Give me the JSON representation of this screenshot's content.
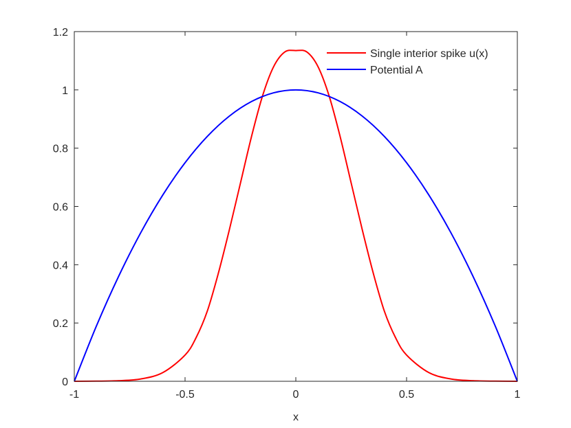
{
  "chart_data": {
    "type": "line",
    "title": "",
    "xlabel": "x",
    "ylabel": "",
    "xlim": [
      -1,
      1
    ],
    "ylim": [
      0,
      1.2
    ],
    "xticks": [
      -1,
      -0.5,
      0,
      0.5,
      1
    ],
    "xtick_labels": [
      "-1",
      "-0.5",
      "0",
      "0.5",
      "1"
    ],
    "yticks": [
      0,
      0.2,
      0.4,
      0.6,
      0.8,
      1,
      1.2
    ],
    "ytick_labels": [
      "0",
      "0.2",
      "0.4",
      "0.6",
      "0.8",
      "1",
      "1.2"
    ],
    "grid": false,
    "legend_position": "top-right",
    "series": [
      {
        "name": "Single interior spike u(x)",
        "color": "#ff0000",
        "x": [
          -1,
          -0.9,
          -0.8,
          -0.7,
          -0.6,
          -0.5,
          -0.45,
          -0.4,
          -0.35,
          -0.3,
          -0.25,
          -0.2,
          -0.15,
          -0.1,
          -0.05,
          0,
          0.05,
          0.1,
          0.15,
          0.2,
          0.25,
          0.3,
          0.35,
          0.4,
          0.45,
          0.5,
          0.6,
          0.7,
          0.8,
          0.9,
          1
        ],
        "y": [
          0,
          0.0005,
          0.002,
          0.008,
          0.03,
          0.09,
          0.15,
          0.24,
          0.37,
          0.52,
          0.68,
          0.84,
          0.98,
          1.08,
          1.13,
          1.135,
          1.13,
          1.08,
          0.98,
          0.84,
          0.68,
          0.52,
          0.37,
          0.24,
          0.15,
          0.09,
          0.03,
          0.008,
          0.002,
          0.0005,
          0
        ]
      },
      {
        "name": "Potential A",
        "color": "#0000ff",
        "x": [
          -1,
          -0.9,
          -0.8,
          -0.7,
          -0.6,
          -0.5,
          -0.4,
          -0.3,
          -0.2,
          -0.1,
          0,
          0.1,
          0.2,
          0.3,
          0.4,
          0.5,
          0.6,
          0.7,
          0.8,
          0.9,
          1
        ],
        "y": [
          0,
          0.19,
          0.36,
          0.51,
          0.64,
          0.75,
          0.84,
          0.91,
          0.96,
          0.99,
          1,
          0.99,
          0.96,
          0.91,
          0.84,
          0.75,
          0.64,
          0.51,
          0.36,
          0.19,
          0
        ]
      }
    ]
  }
}
